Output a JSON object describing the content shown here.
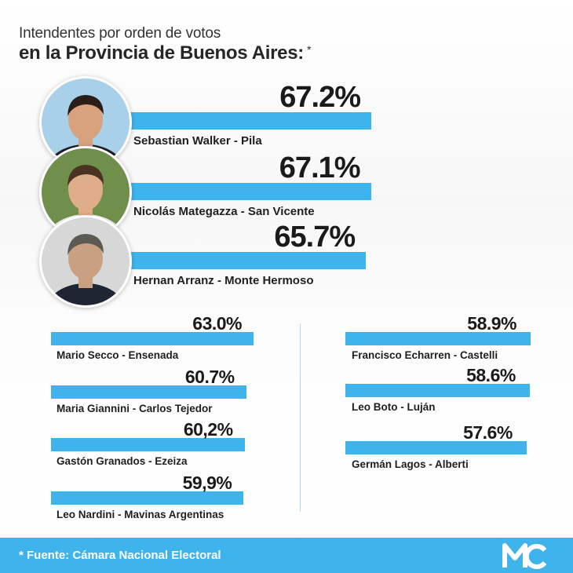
{
  "title": {
    "line1": "Intendentes por orden de votos",
    "line2": "en la Provincia de Buenos Aires:",
    "asterisk": "*"
  },
  "chart_data": {
    "type": "bar",
    "orientation": "horizontal",
    "unit": "%",
    "categories": [
      "Sebastian Walker - Pila",
      "Nicolás Mategazza - San Vicente",
      "Hernan Arranz - Monte Hermoso",
      "Mario Secco - Ensenada",
      "Maria Giannini - Carlos Tejedor",
      "Gastón Granados - Ezeiza",
      "Leo Nardini - Mavinas Argentinas",
      "Francisco Echarren - Castelli",
      "Leo Boto - Luján",
      "Germán Lagos - Alberti"
    ],
    "values": [
      67.2,
      67.1,
      65.7,
      63.0,
      60.7,
      60.2,
      59.9,
      58.9,
      58.6,
      57.6
    ],
    "value_labels": [
      "67.2%",
      "67.1%",
      "65.7%",
      "63.0%",
      "60.7%",
      "60,2%",
      "59,9%",
      "58.9%",
      "58.6%",
      "57.6%"
    ],
    "bar_color": "#3fb4ec"
  },
  "footer": {
    "source": "* Fuente: Cámara Nacional Electoral",
    "logo": "MC"
  },
  "colors": {
    "accent": "#3fb4ec",
    "text": "#1f1f1f"
  }
}
